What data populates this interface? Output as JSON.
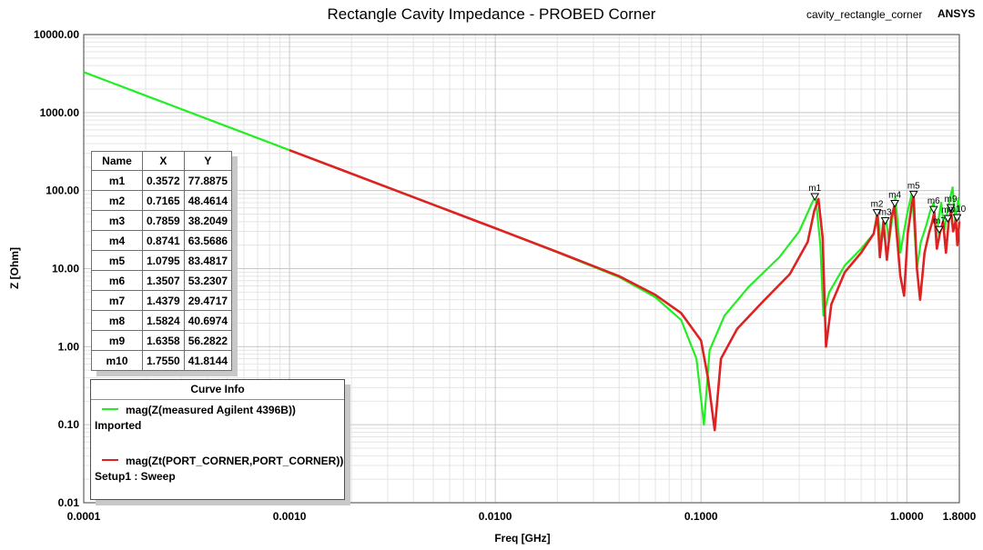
{
  "window": {
    "title": "Rectangle Cavity Impedance - PROBED Corner",
    "design_name": "cavity_rectangle_corner",
    "brand": "ANSYS"
  },
  "axes": {
    "xlabel": "Freq [GHz]",
    "ylabel": "Z [Ohm]",
    "x_ticks": [
      "0.0001",
      "0.0010",
      "0.0100",
      "0.1000",
      "1.0000",
      "1.8000"
    ],
    "y_ticks": [
      "10000.00",
      "1000.00",
      "100.00",
      "10.00",
      "1.00",
      "0.10",
      "0.01"
    ]
  },
  "marker_table": {
    "headers": [
      "Name",
      "X",
      "Y"
    ],
    "rows": [
      [
        "m1",
        "0.3572",
        "77.8875"
      ],
      [
        "m2",
        "0.7165",
        "48.4614"
      ],
      [
        "m3",
        "0.7859",
        "38.2049"
      ],
      [
        "m4",
        "0.8741",
        "63.5686"
      ],
      [
        "m5",
        "1.0795",
        "83.4817"
      ],
      [
        "m6",
        "1.3507",
        "53.2307"
      ],
      [
        "m7",
        "1.4379",
        "29.4717"
      ],
      [
        "m8",
        "1.5824",
        "40.6974"
      ],
      [
        "m9",
        "1.6358",
        "56.2822"
      ],
      [
        "m10",
        "1.7550",
        "41.8144"
      ]
    ]
  },
  "curve_info": {
    "title": "Curve Info",
    "curves": [
      {
        "label": "mag(Z(measured Agilent 4396B))",
        "sub": "Imported",
        "color": "#22ee22"
      },
      {
        "label": "mag(Zt(PORT_CORNER,PORT_CORNER))",
        "sub": "Setup1 : Sweep",
        "color": "#dd2222"
      }
    ]
  },
  "chart_data": {
    "type": "line",
    "title": "Rectangle Cavity Impedance - PROBED Corner",
    "xlabel": "Freq [GHz]",
    "ylabel": "Z [Ohm]",
    "x_scale": "log",
    "y_scale": "log",
    "xlim": [
      0.0001,
      1.8
    ],
    "ylim": [
      0.01,
      10000
    ],
    "grid": true,
    "legend": "bottom-left",
    "series": [
      {
        "name": "mag(Z(measured Agilent 4396B))",
        "color": "#22ee22",
        "x": [
          0.0001,
          0.0002,
          0.0005,
          0.001,
          0.002,
          0.005,
          0.01,
          0.02,
          0.04,
          0.06,
          0.08,
          0.095,
          0.1033,
          0.11,
          0.13,
          0.17,
          0.24,
          0.3,
          0.345,
          0.36,
          0.38,
          0.393,
          0.42,
          0.5,
          0.6,
          0.69,
          0.72,
          0.75,
          0.79,
          0.82,
          0.86,
          0.88,
          0.93,
          1.0,
          1.06,
          1.085,
          1.12,
          1.17,
          1.24,
          1.3,
          1.35,
          1.39,
          1.43,
          1.47,
          1.52,
          1.58,
          1.63,
          1.67,
          1.72,
          1.75,
          1.78,
          1.8
        ],
        "y": [
          3300,
          1650,
          660,
          330,
          165,
          66,
          33,
          16.2,
          7.8,
          4.3,
          2.2,
          0.7,
          0.1,
          0.9,
          2.5,
          5.8,
          14,
          30,
          68,
          85,
          20,
          2.5,
          5,
          11,
          18,
          28,
          55,
          20,
          45,
          22,
          55,
          82,
          16,
          48,
          95,
          38,
          10,
          22,
          35,
          55,
          70,
          24,
          45,
          70,
          30,
          58,
          85,
          110,
          40,
          55,
          80,
          62
        ]
      },
      {
        "name": "mag(Zt(PORT_CORNER,PORT_CORNER))",
        "color": "#dd2222",
        "x": [
          0.001,
          0.002,
          0.005,
          0.01,
          0.02,
          0.04,
          0.06,
          0.08,
          0.1,
          0.108,
          0.1165,
          0.125,
          0.15,
          0.2,
          0.27,
          0.33,
          0.355,
          0.372,
          0.39,
          0.405,
          0.43,
          0.5,
          0.6,
          0.69,
          0.72,
          0.74,
          0.77,
          0.8,
          0.84,
          0.87,
          0.93,
          0.97,
          1.01,
          1.06,
          1.08,
          1.12,
          1.16,
          1.22,
          1.28,
          1.33,
          1.36,
          1.4,
          1.45,
          1.5,
          1.55,
          1.6,
          1.64,
          1.68,
          1.73,
          1.76,
          1.8
        ],
        "y": [
          330,
          165,
          66,
          33,
          16.4,
          8,
          4.6,
          2.7,
          1.2,
          0.4,
          0.085,
          0.7,
          1.7,
          3.8,
          8.5,
          22,
          55,
          78,
          25,
          1.0,
          3.5,
          9,
          16,
          28,
          48,
          14,
          40,
          13,
          45,
          63,
          8,
          4.5,
          28,
          70,
          83,
          10,
          4,
          16,
          28,
          40,
          53,
          18,
          29,
          40,
          16,
          41,
          55,
          30,
          42,
          20,
          40
        ]
      }
    ],
    "markers": [
      {
        "name": "m1",
        "x": 0.3572,
        "y": 77.8875
      },
      {
        "name": "m2",
        "x": 0.7165,
        "y": 48.4614
      },
      {
        "name": "m3",
        "x": 0.7859,
        "y": 38.2049
      },
      {
        "name": "m4",
        "x": 0.8741,
        "y": 63.5686
      },
      {
        "name": "m5",
        "x": 1.0795,
        "y": 83.4817
      },
      {
        "name": "m6",
        "x": 1.3507,
        "y": 53.2307
      },
      {
        "name": "m7",
        "x": 1.4379,
        "y": 29.4717
      },
      {
        "name": "m8",
        "x": 1.5824,
        "y": 40.6974
      },
      {
        "name": "m9",
        "x": 1.6358,
        "y": 56.2822
      },
      {
        "name": "m10",
        "x": 1.755,
        "y": 41.8144
      }
    ]
  }
}
